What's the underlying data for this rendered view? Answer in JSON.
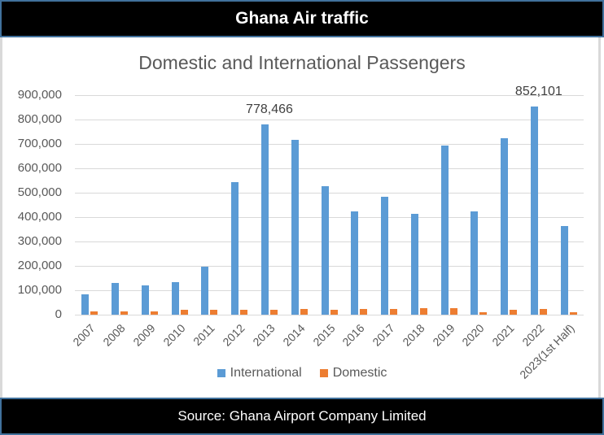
{
  "header": {
    "title": "Ghana Air traffic"
  },
  "footer": {
    "source": "Source: Ghana Airport Company Limited"
  },
  "chart_data": {
    "type": "bar",
    "title": "Domestic and International Passengers",
    "xlabel": "",
    "ylabel": "",
    "ylim": [
      0,
      900000
    ],
    "yticks": [
      "0",
      "100,000",
      "200,000",
      "300,000",
      "400,000",
      "500,000",
      "600,000",
      "700,000",
      "800,000",
      "900,000"
    ],
    "grid": true,
    "legend_position": "bottom",
    "categories": [
      "2007",
      "2008",
      "2009",
      "2010",
      "2011",
      "2012",
      "2013",
      "2014",
      "2015",
      "2016",
      "2017",
      "2018",
      "2019",
      "2020",
      "2021",
      "2022",
      "2023(1st Half)"
    ],
    "series": [
      {
        "name": "International",
        "color": "#5b9bd5",
        "values": [
          84000,
          131000,
          121000,
          134000,
          198000,
          543000,
          778466,
          718000,
          527000,
          422000,
          485000,
          415000,
          692000,
          425000,
          725000,
          852101,
          364000
        ]
      },
      {
        "name": "Domestic",
        "color": "#ed7d31",
        "values": [
          13000,
          14000,
          14000,
          20000,
          20000,
          20000,
          20000,
          24000,
          20000,
          24000,
          24000,
          27000,
          27000,
          10000,
          20000,
          25000,
          10000
        ]
      }
    ],
    "annotations": [
      {
        "category": "2013",
        "series": "International",
        "label": "778,466"
      },
      {
        "category": "2022",
        "series": "International",
        "label": "852,101"
      }
    ]
  }
}
